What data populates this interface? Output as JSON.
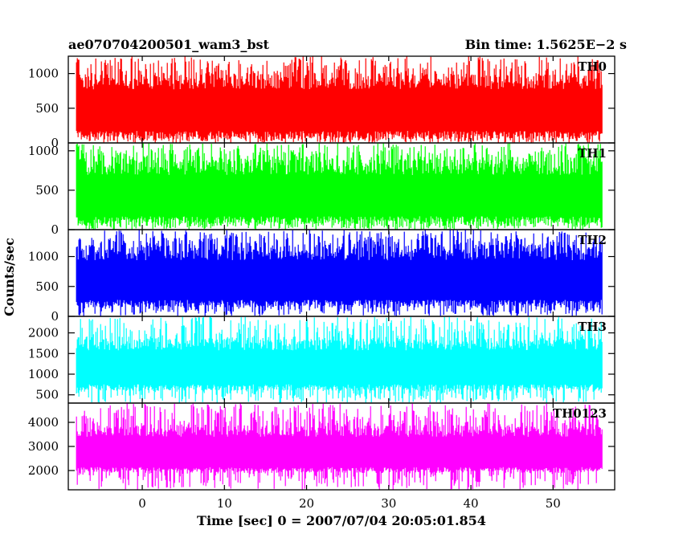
{
  "header": {
    "left_title": "ae070704200501_wam3_bst",
    "right_title": "Bin time: 1.5625E−2 s"
  },
  "chart_data": {
    "type": "line",
    "xlabel": "Time [sec] 0 = 2007/07/04 20:05:01.854",
    "ylabel": "Counts/sec",
    "xlim": [
      -9,
      57.5
    ],
    "x_data_range": [
      -8,
      56
    ],
    "bin_time_s": 0.015625,
    "x_ticks": [
      0,
      10,
      20,
      30,
      40,
      50
    ],
    "grid": false,
    "panels": [
      {
        "name": "TH0",
        "color": "#ff0000",
        "ylim": [
          0,
          1250
        ],
        "y_ticks": [
          0,
          500,
          1000
        ],
        "band": {
          "low_typical": 60,
          "high_typical": 1010,
          "min": 0,
          "max": 1250
        }
      },
      {
        "name": "TH1",
        "color": "#00ff00",
        "ylim": [
          0,
          1100
        ],
        "y_ticks": [
          0,
          500,
          1000
        ],
        "band": {
          "low_typical": 70,
          "high_typical": 900,
          "min": 0,
          "max": 1100
        }
      },
      {
        "name": "TH2",
        "color": "#0000ff",
        "ylim": [
          0,
          1450
        ],
        "y_ticks": [
          0,
          500,
          1000
        ],
        "band": {
          "low_typical": 150,
          "high_typical": 1200,
          "min": 0,
          "max": 1450
        }
      },
      {
        "name": "TH3",
        "color": "#00ffff",
        "ylim": [
          300,
          2400
        ],
        "y_ticks": [
          500,
          1000,
          1500,
          2000
        ],
        "band": {
          "low_typical": 600,
          "high_typical": 1900,
          "min": 300,
          "max": 2400
        }
      },
      {
        "name": "TH0123",
        "color": "#ff00ff",
        "ylim": [
          1200,
          4800
        ],
        "y_ticks": [
          2000,
          3000,
          4000
        ],
        "band": {
          "low_typical": 1900,
          "high_typical": 3900,
          "min": 1200,
          "max": 4800
        }
      }
    ]
  }
}
